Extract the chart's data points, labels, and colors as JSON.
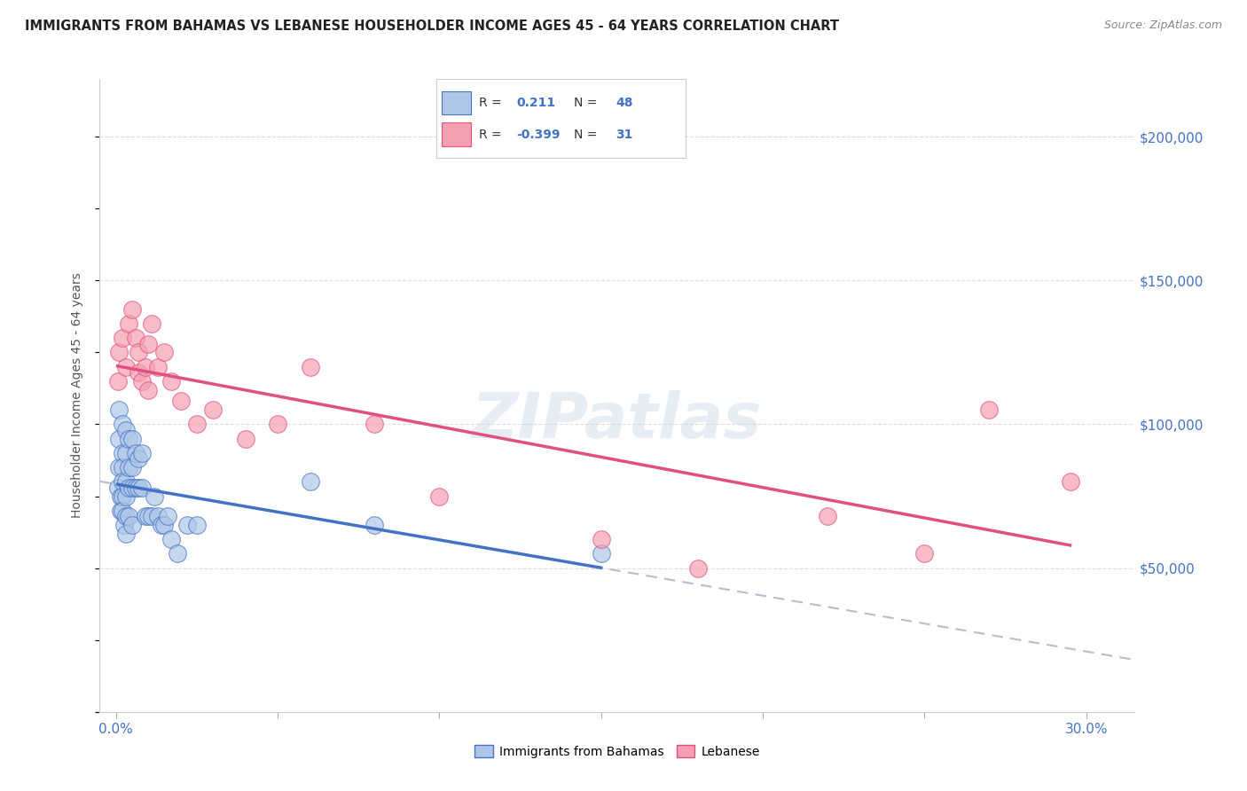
{
  "title": "IMMIGRANTS FROM BAHAMAS VS LEBANESE HOUSEHOLDER INCOME AGES 45 - 64 YEARS CORRELATION CHART",
  "source": "Source: ZipAtlas.com",
  "ylabel": "Householder Income Ages 45 - 64 years",
  "xlabel_ticks_left": "0.0%",
  "xlabel_ticks_right": "30.0%",
  "xlim": [
    -0.005,
    0.315
  ],
  "ytick_labels": [
    "$50,000",
    "$100,000",
    "$150,000",
    "$200,000"
  ],
  "ytick_vals": [
    50000,
    100000,
    150000,
    200000
  ],
  "ylim": [
    0,
    220000
  ],
  "legend_r_bahamas": "0.211",
  "legend_n_bahamas": "48",
  "legend_r_lebanese": "-0.399",
  "legend_n_lebanese": "31",
  "color_bahamas": "#aec6e8",
  "color_lebanese": "#f4a0b0",
  "line_color_bahamas": "#4472c4",
  "line_color_lebanese": "#e05080",
  "trendline_color": "#bbbbcc",
  "background_color": "#ffffff",
  "watermark": "ZIPatlas",
  "bahamas_x": [
    0.0005,
    0.001,
    0.001,
    0.001,
    0.0015,
    0.0015,
    0.002,
    0.002,
    0.002,
    0.002,
    0.002,
    0.002,
    0.0025,
    0.003,
    0.003,
    0.003,
    0.003,
    0.003,
    0.003,
    0.004,
    0.004,
    0.004,
    0.004,
    0.005,
    0.005,
    0.005,
    0.005,
    0.006,
    0.006,
    0.007,
    0.007,
    0.008,
    0.008,
    0.009,
    0.01,
    0.011,
    0.012,
    0.013,
    0.014,
    0.015,
    0.016,
    0.017,
    0.019,
    0.022,
    0.025,
    0.06,
    0.08,
    0.15
  ],
  "bahamas_y": [
    78000,
    105000,
    95000,
    85000,
    75000,
    70000,
    100000,
    90000,
    85000,
    80000,
    75000,
    70000,
    65000,
    98000,
    90000,
    80000,
    75000,
    68000,
    62000,
    95000,
    85000,
    78000,
    68000,
    95000,
    85000,
    78000,
    65000,
    90000,
    78000,
    88000,
    78000,
    90000,
    78000,
    68000,
    68000,
    68000,
    75000,
    68000,
    65000,
    65000,
    68000,
    60000,
    55000,
    65000,
    65000,
    80000,
    65000,
    55000
  ],
  "lebanese_x": [
    0.0005,
    0.001,
    0.002,
    0.003,
    0.004,
    0.005,
    0.006,
    0.007,
    0.007,
    0.008,
    0.009,
    0.01,
    0.01,
    0.011,
    0.013,
    0.015,
    0.017,
    0.02,
    0.025,
    0.03,
    0.04,
    0.05,
    0.06,
    0.08,
    0.1,
    0.15,
    0.18,
    0.22,
    0.25,
    0.27,
    0.295
  ],
  "lebanese_y": [
    115000,
    125000,
    130000,
    120000,
    135000,
    140000,
    130000,
    125000,
    118000,
    115000,
    120000,
    128000,
    112000,
    135000,
    120000,
    125000,
    115000,
    108000,
    100000,
    105000,
    95000,
    100000,
    120000,
    100000,
    75000,
    60000,
    50000,
    68000,
    55000,
    105000,
    80000
  ]
}
